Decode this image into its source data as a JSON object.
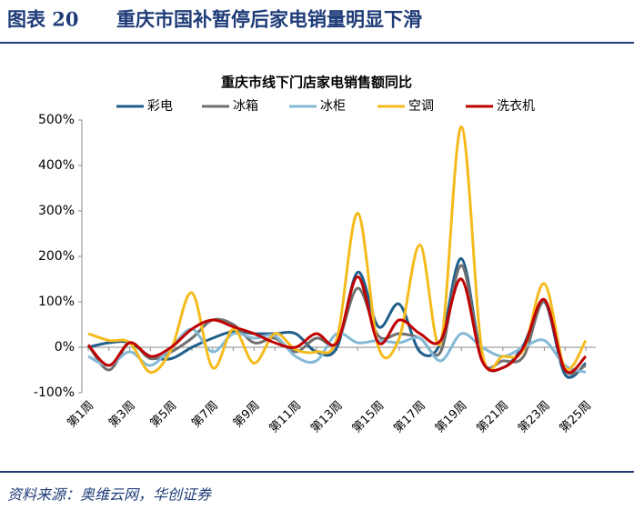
{
  "header": {
    "label": "图表 20",
    "title": "重庆市国补暂停后家电销量明显下滑"
  },
  "source": "资料来源：奥维云网，华创证券",
  "chart_data": {
    "type": "line",
    "title": "重庆市线下门店家电销售额同比",
    "categories": [
      "第1周",
      null,
      "第3周",
      null,
      "第5周",
      null,
      "第7周",
      null,
      "第9周",
      null,
      "第11周",
      null,
      "第13周",
      null,
      "第15周",
      null,
      "第17周",
      null,
      "第19周",
      null,
      "第21周",
      null,
      "第23周",
      null,
      "第25周"
    ],
    "series": [
      {
        "name": "彩电",
        "color": "#1f5f8b",
        "values": [
          0,
          10,
          10,
          -20,
          -25,
          0,
          20,
          35,
          30,
          30,
          30,
          -10,
          0,
          165,
          45,
          95,
          -10,
          10,
          195,
          -25,
          -45,
          5,
          100,
          -60,
          -35
        ]
      },
      {
        "name": "冰箱",
        "color": "#707070",
        "values": [
          5,
          -50,
          10,
          -25,
          -10,
          20,
          60,
          50,
          10,
          20,
          -10,
          20,
          10,
          130,
          25,
          30,
          20,
          -10,
          180,
          -30,
          -30,
          -20,
          100,
          -50,
          -40
        ]
      },
      {
        "name": "冰柜",
        "color": "#84b9d6",
        "values": [
          -20,
          -40,
          -10,
          -40,
          0,
          40,
          -10,
          30,
          20,
          25,
          -20,
          -30,
          30,
          10,
          15,
          10,
          20,
          -30,
          30,
          0,
          -20,
          0,
          15,
          -40,
          -55
        ]
      },
      {
        "name": "空调",
        "color": "#f5bb1d",
        "values": [
          30,
          15,
          10,
          -55,
          -5,
          120,
          -45,
          40,
          -35,
          30,
          -5,
          -10,
          20,
          295,
          0,
          20,
          225,
          10,
          485,
          -10,
          -20,
          -5,
          140,
          -45,
          15
        ]
      },
      {
        "name": "洗衣机",
        "color": "#c00000",
        "values": [
          5,
          -40,
          10,
          -20,
          0,
          40,
          60,
          45,
          30,
          10,
          0,
          30,
          10,
          155,
          10,
          60,
          30,
          15,
          150,
          -30,
          -45,
          0,
          105,
          -50,
          -20
        ]
      }
    ],
    "ylim": [
      -100,
      500
    ],
    "yticks": [
      {
        "value": -100,
        "label": "-100%"
      },
      {
        "value": 0,
        "label": "0%"
      },
      {
        "value": 100,
        "label": "100%"
      },
      {
        "value": 200,
        "label": "200%"
      },
      {
        "value": 300,
        "label": "300%"
      },
      {
        "value": 400,
        "label": "400%"
      },
      {
        "value": 500,
        "label": "500%"
      }
    ]
  }
}
